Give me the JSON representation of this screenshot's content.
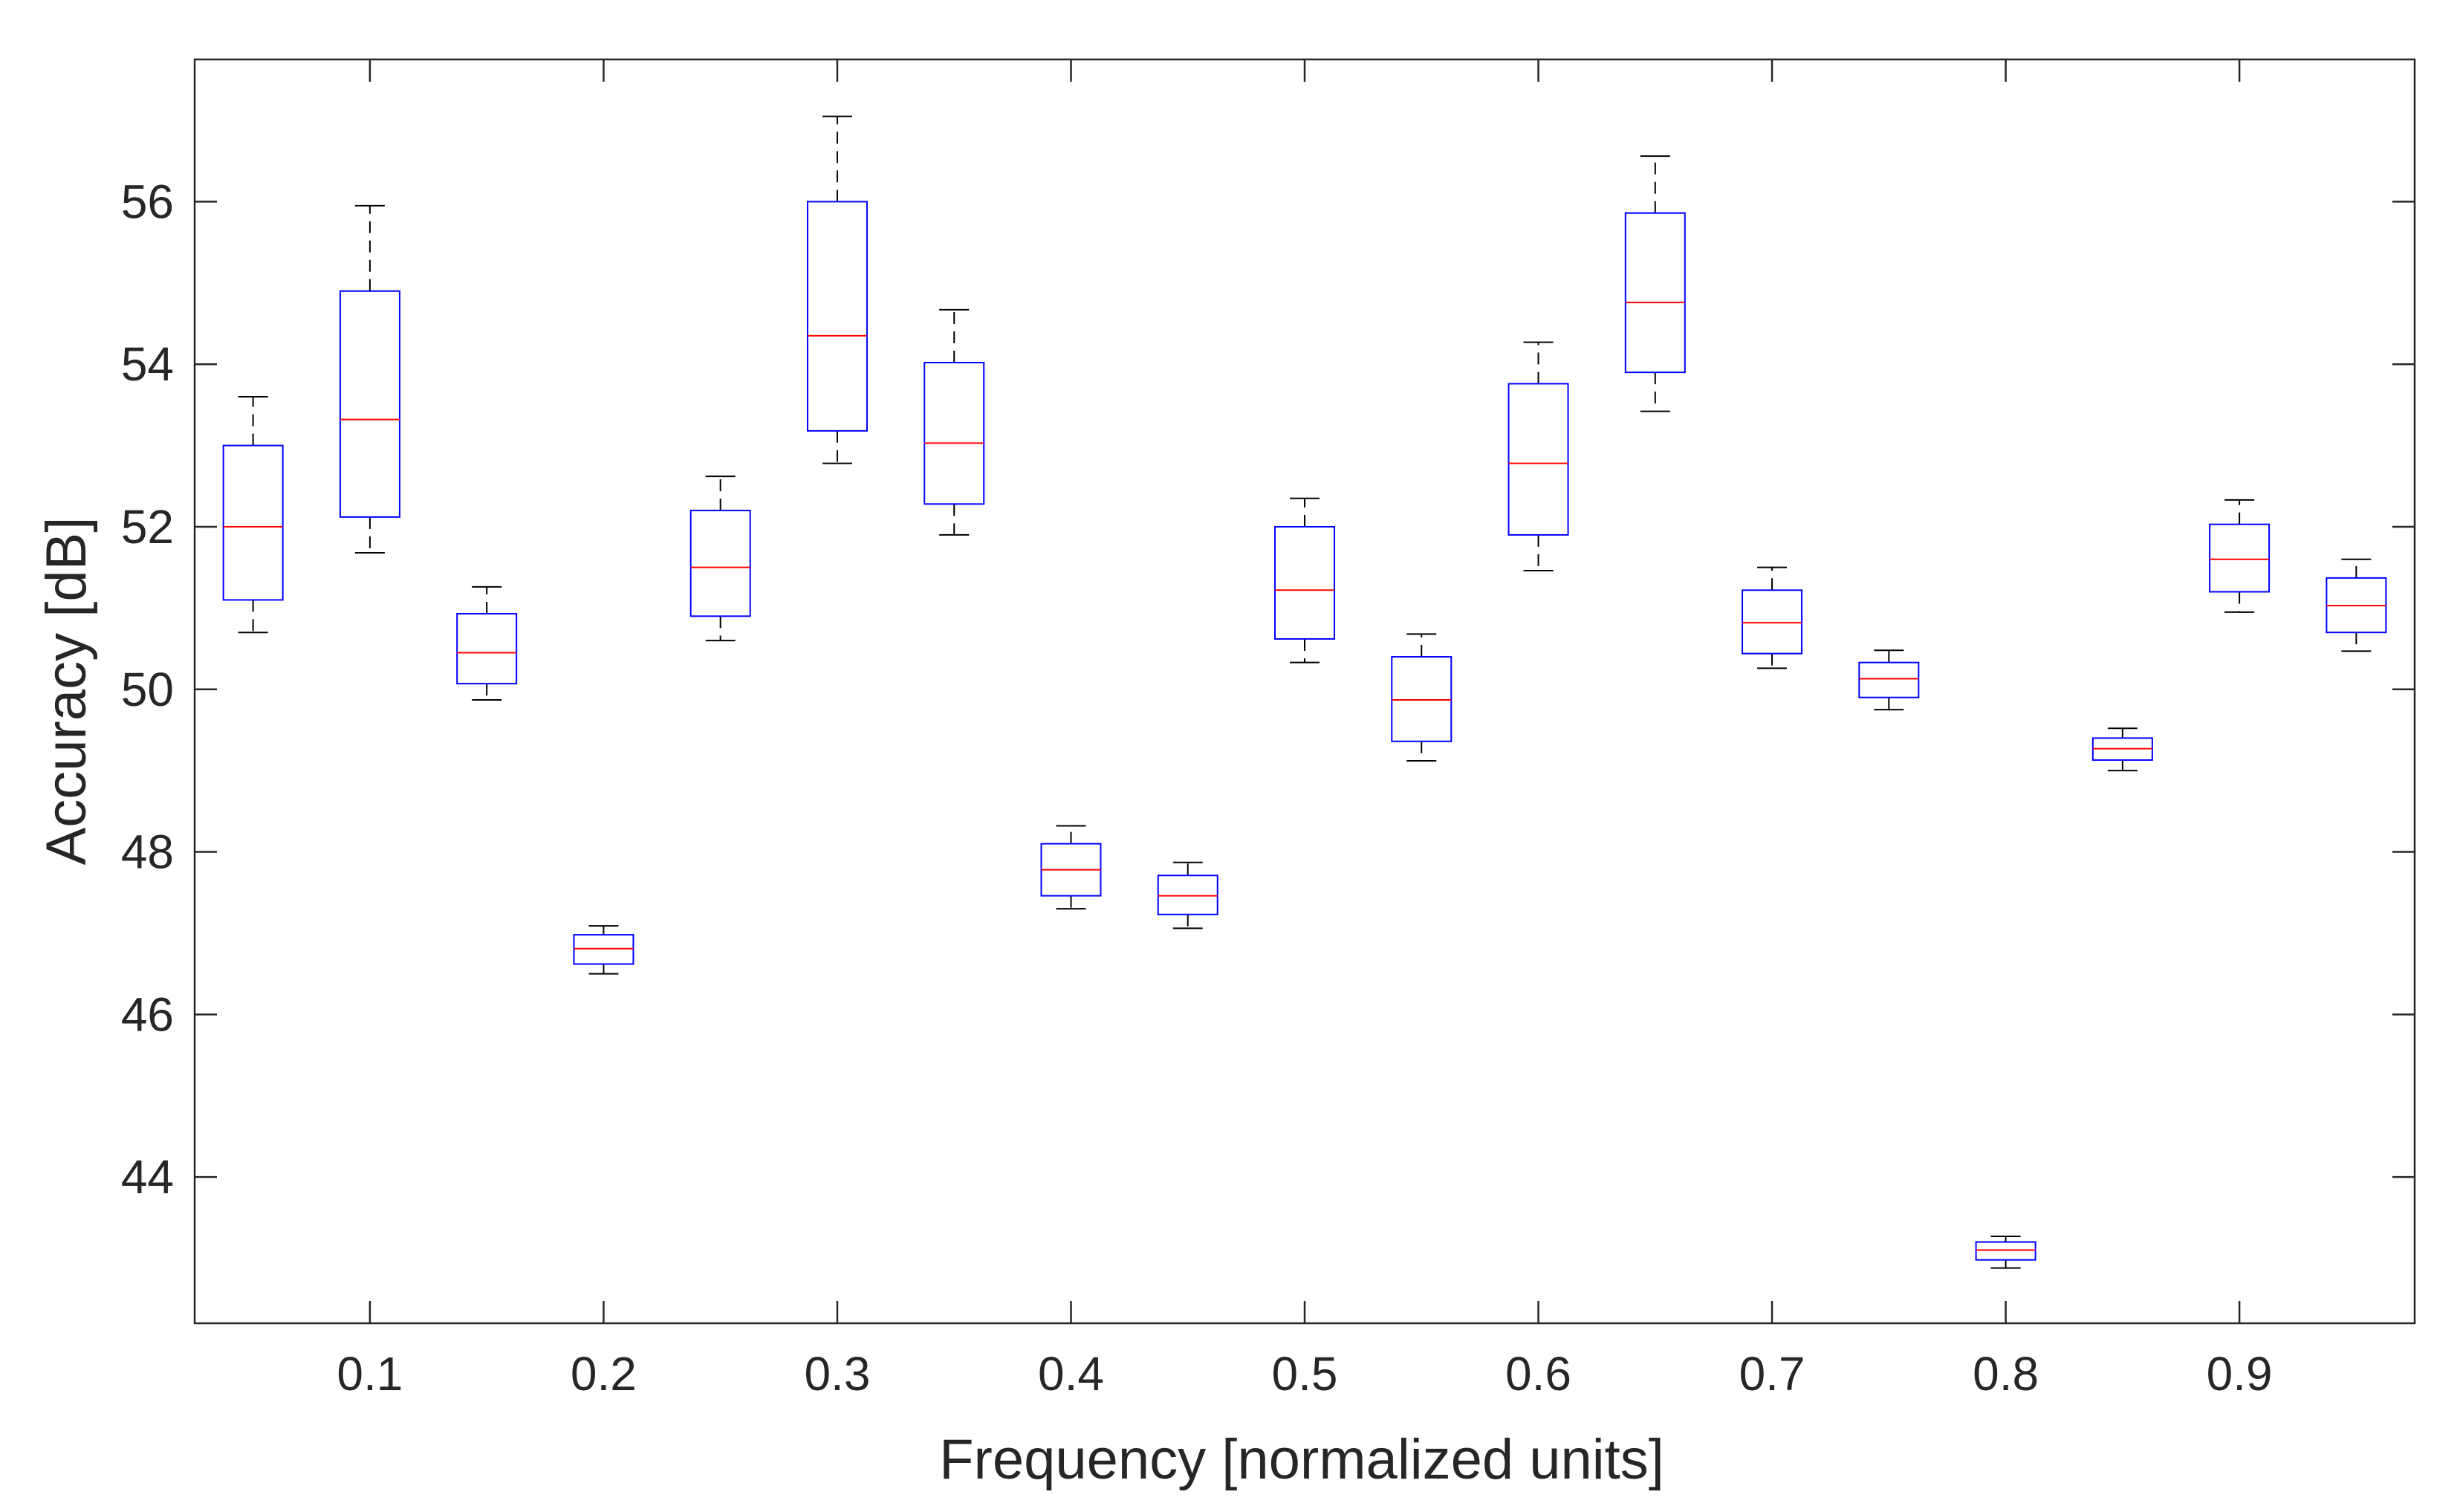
{
  "chart_data": {
    "type": "boxplot",
    "title": "",
    "xlabel": "Frequency [normalized units]",
    "ylabel": "Accuracy [dB]",
    "xlim": [
      0.025,
      0.975
    ],
    "ylim": [
      42.2,
      57.75
    ],
    "x_ticks": [
      0.1,
      0.2,
      0.3,
      0.4,
      0.5,
      0.6,
      0.7,
      0.8,
      0.9
    ],
    "x_tick_labels": [
      "0.1",
      "0.2",
      "0.3",
      "0.4",
      "0.5",
      "0.6",
      "0.7",
      "0.8",
      "0.9"
    ],
    "y_ticks": [
      44,
      46,
      48,
      50,
      52,
      54,
      56
    ],
    "y_tick_labels": [
      "44",
      "46",
      "48",
      "50",
      "52",
      "54",
      "56"
    ],
    "grid": false,
    "colors": {
      "box": "#0000ff",
      "median": "#ff0000",
      "whisker": "#000000",
      "axis": "#262626"
    },
    "boxes": [
      {
        "x": 0.05,
        "min": 50.7,
        "q1": 51.1,
        "median": 52.0,
        "q3": 53.0,
        "max": 53.6
      },
      {
        "x": 0.1,
        "min": 51.68,
        "q1": 52.12,
        "median": 53.32,
        "q3": 54.9,
        "max": 55.95
      },
      {
        "x": 0.15,
        "min": 49.87,
        "q1": 50.07,
        "median": 50.45,
        "q3": 50.93,
        "max": 51.26
      },
      {
        "x": 0.2,
        "min": 46.5,
        "q1": 46.62,
        "median": 46.81,
        "q3": 46.98,
        "max": 47.09
      },
      {
        "x": 0.25,
        "min": 50.6,
        "q1": 50.9,
        "median": 51.5,
        "q3": 52.2,
        "max": 52.62
      },
      {
        "x": 0.3,
        "min": 52.78,
        "q1": 53.18,
        "median": 54.35,
        "q3": 56.0,
        "max": 57.05
      },
      {
        "x": 0.35,
        "min": 51.9,
        "q1": 52.28,
        "median": 53.03,
        "q3": 54.02,
        "max": 54.67
      },
      {
        "x": 0.4,
        "min": 47.3,
        "q1": 47.46,
        "median": 47.78,
        "q3": 48.1,
        "max": 48.32
      },
      {
        "x": 0.45,
        "min": 47.06,
        "q1": 47.23,
        "median": 47.46,
        "q3": 47.71,
        "max": 47.87
      },
      {
        "x": 0.5,
        "min": 50.33,
        "q1": 50.62,
        "median": 51.22,
        "q3": 52.0,
        "max": 52.35
      },
      {
        "x": 0.55,
        "min": 49.12,
        "q1": 49.36,
        "median": 49.87,
        "q3": 50.4,
        "max": 50.68
      },
      {
        "x": 0.6,
        "min": 51.46,
        "q1": 51.9,
        "median": 52.78,
        "q3": 53.76,
        "max": 54.27
      },
      {
        "x": 0.65,
        "min": 53.42,
        "q1": 53.9,
        "median": 54.76,
        "q3": 55.86,
        "max": 56.56
      },
      {
        "x": 0.7,
        "min": 50.26,
        "q1": 50.44,
        "median": 50.82,
        "q3": 51.22,
        "max": 51.5
      },
      {
        "x": 0.75,
        "min": 49.75,
        "q1": 49.9,
        "median": 50.13,
        "q3": 50.33,
        "max": 50.48
      },
      {
        "x": 0.8,
        "min": 42.88,
        "q1": 42.98,
        "median": 43.1,
        "q3": 43.2,
        "max": 43.27
      },
      {
        "x": 0.85,
        "min": 49.0,
        "q1": 49.13,
        "median": 49.27,
        "q3": 49.4,
        "max": 49.52
      },
      {
        "x": 0.9,
        "min": 50.95,
        "q1": 51.2,
        "median": 51.6,
        "q3": 52.03,
        "max": 52.33
      },
      {
        "x": 0.95,
        "min": 50.47,
        "q1": 50.7,
        "median": 51.03,
        "q3": 51.37,
        "max": 51.6
      }
    ]
  }
}
